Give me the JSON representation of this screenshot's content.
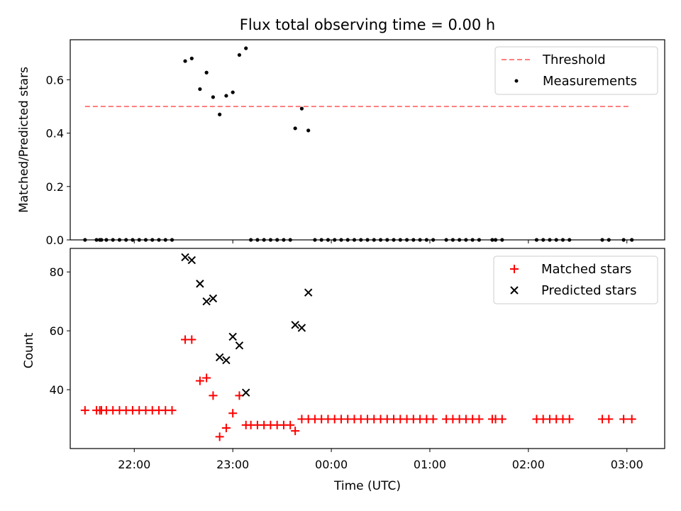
{
  "chart_data": [
    {
      "type": "scatter",
      "title": "Flux total observing time = 0.00 h",
      "xlabel": "",
      "ylabel": "Matched/Predicted stars",
      "xlim": [
        "21:21",
        "03:23"
      ],
      "ylim": [
        0,
        0.75
      ],
      "yticks": [
        "0.0",
        "0.2",
        "0.4",
        "0.6"
      ],
      "ytick_values": [
        0.0,
        0.2,
        0.4,
        0.6
      ],
      "legend_position": "top-right",
      "threshold": {
        "name": "Threshold",
        "value": 0.5,
        "x_start": "21:30",
        "x_end": "03:01",
        "color": "#ff7f7f",
        "style": "dashed"
      },
      "series": [
        {
          "name": "Measurements",
          "color": "#000000",
          "marker": "dot",
          "points": [
            [
              "21:30",
              0.0
            ],
            [
              "21:37",
              0.0
            ],
            [
              "21:39",
              0.0
            ],
            [
              "21:40",
              0.0
            ],
            [
              "21:43",
              0.0
            ],
            [
              "21:47",
              0.0
            ],
            [
              "21:51",
              0.0
            ],
            [
              "21:55",
              0.0
            ],
            [
              "21:59",
              0.0
            ],
            [
              "22:03",
              0.0
            ],
            [
              "22:07",
              0.0
            ],
            [
              "22:11",
              0.0
            ],
            [
              "22:15",
              0.0
            ],
            [
              "22:19",
              0.0
            ],
            [
              "22:23",
              0.0
            ],
            [
              "22:31",
              0.67
            ],
            [
              "22:35",
              0.68
            ],
            [
              "22:40",
              0.565
            ],
            [
              "22:44",
              0.627
            ],
            [
              "22:48",
              0.535
            ],
            [
              "22:52",
              0.47
            ],
            [
              "22:56",
              0.54
            ],
            [
              "23:00",
              0.553
            ],
            [
              "23:04",
              0.693
            ],
            [
              "23:08",
              0.718
            ],
            [
              "23:11",
              0.0
            ],
            [
              "23:15",
              0.0
            ],
            [
              "23:19",
              0.0
            ],
            [
              "23:23",
              0.0
            ],
            [
              "23:27",
              0.0
            ],
            [
              "23:31",
              0.0
            ],
            [
              "23:35",
              0.0
            ],
            [
              "23:38",
              0.418
            ],
            [
              "23:42",
              0.492
            ],
            [
              "23:46",
              0.41
            ],
            [
              "23:50",
              0.0
            ],
            [
              "23:54",
              0.0
            ],
            [
              "23:58",
              0.0
            ],
            [
              "00:02",
              0.0
            ],
            [
              "00:06",
              0.0
            ],
            [
              "00:10",
              0.0
            ],
            [
              "00:14",
              0.0
            ],
            [
              "00:18",
              0.0
            ],
            [
              "00:22",
              0.0
            ],
            [
              "00:26",
              0.0
            ],
            [
              "00:30",
              0.0
            ],
            [
              "00:34",
              0.0
            ],
            [
              "00:38",
              0.0
            ],
            [
              "00:42",
              0.0
            ],
            [
              "00:46",
              0.0
            ],
            [
              "00:50",
              0.0
            ],
            [
              "00:54",
              0.0
            ],
            [
              "00:58",
              0.0
            ],
            [
              "01:02",
              0.0
            ],
            [
              "01:10",
              0.0
            ],
            [
              "01:14",
              0.0
            ],
            [
              "01:18",
              0.0
            ],
            [
              "01:22",
              0.0
            ],
            [
              "01:26",
              0.0
            ],
            [
              "01:30",
              0.0
            ],
            [
              "01:38",
              0.0
            ],
            [
              "01:40",
              0.0
            ],
            [
              "01:44",
              0.0
            ],
            [
              "02:05",
              0.0
            ],
            [
              "02:09",
              0.0
            ],
            [
              "02:13",
              0.0
            ],
            [
              "02:17",
              0.0
            ],
            [
              "02:21",
              0.0
            ],
            [
              "02:25",
              0.0
            ],
            [
              "02:45",
              0.0
            ],
            [
              "02:49",
              0.0
            ],
            [
              "02:58",
              0.0
            ],
            [
              "03:03",
              0.0
            ]
          ]
        }
      ]
    },
    {
      "type": "scatter",
      "title": "",
      "xlabel": "Time (UTC)",
      "ylabel": "Count",
      "xlim": [
        "21:21",
        "03:23"
      ],
      "ylim": [
        20,
        88
      ],
      "yticks": [
        "40",
        "60",
        "80"
      ],
      "ytick_values": [
        40,
        60,
        80
      ],
      "xticks": [
        "22:00",
        "23:00",
        "00:00",
        "01:00",
        "02:00",
        "03:00"
      ],
      "legend_position": "top-right",
      "series": [
        {
          "name": "Matched stars",
          "color": "#ff0000",
          "marker": "plus",
          "points": [
            [
              "21:30",
              33
            ],
            [
              "21:37",
              33
            ],
            [
              "21:39",
              33
            ],
            [
              "21:40",
              33
            ],
            [
              "21:43",
              33
            ],
            [
              "21:47",
              33
            ],
            [
              "21:51",
              33
            ],
            [
              "21:55",
              33
            ],
            [
              "21:59",
              33
            ],
            [
              "22:03",
              33
            ],
            [
              "22:07",
              33
            ],
            [
              "22:11",
              33
            ],
            [
              "22:15",
              33
            ],
            [
              "22:19",
              33
            ],
            [
              "22:23",
              33
            ],
            [
              "22:31",
              57
            ],
            [
              "22:35",
              57
            ],
            [
              "22:40",
              43
            ],
            [
              "22:44",
              44
            ],
            [
              "22:48",
              38
            ],
            [
              "22:52",
              24
            ],
            [
              "22:56",
              27
            ],
            [
              "23:00",
              32
            ],
            [
              "23:04",
              38
            ],
            [
              "23:08",
              28
            ],
            [
              "23:11",
              28
            ],
            [
              "23:15",
              28
            ],
            [
              "23:19",
              28
            ],
            [
              "23:23",
              28
            ],
            [
              "23:27",
              28
            ],
            [
              "23:31",
              28
            ],
            [
              "23:35",
              28
            ],
            [
              "23:38",
              26
            ],
            [
              "23:42",
              30
            ],
            [
              "23:46",
              30
            ],
            [
              "23:50",
              30
            ],
            [
              "23:54",
              30
            ],
            [
              "23:58",
              30
            ],
            [
              "00:02",
              30
            ],
            [
              "00:06",
              30
            ],
            [
              "00:10",
              30
            ],
            [
              "00:14",
              30
            ],
            [
              "00:18",
              30
            ],
            [
              "00:22",
              30
            ],
            [
              "00:26",
              30
            ],
            [
              "00:30",
              30
            ],
            [
              "00:34",
              30
            ],
            [
              "00:38",
              30
            ],
            [
              "00:42",
              30
            ],
            [
              "00:46",
              30
            ],
            [
              "00:50",
              30
            ],
            [
              "00:54",
              30
            ],
            [
              "00:58",
              30
            ],
            [
              "01:02",
              30
            ],
            [
              "01:10",
              30
            ],
            [
              "01:14",
              30
            ],
            [
              "01:18",
              30
            ],
            [
              "01:22",
              30
            ],
            [
              "01:26",
              30
            ],
            [
              "01:30",
              30
            ],
            [
              "01:38",
              30
            ],
            [
              "01:40",
              30
            ],
            [
              "01:44",
              30
            ],
            [
              "02:05",
              30
            ],
            [
              "02:09",
              30
            ],
            [
              "02:13",
              30
            ],
            [
              "02:17",
              30
            ],
            [
              "02:21",
              30
            ],
            [
              "02:25",
              30
            ],
            [
              "02:45",
              30
            ],
            [
              "02:49",
              30
            ],
            [
              "02:58",
              30
            ],
            [
              "03:03",
              30
            ]
          ]
        },
        {
          "name": "Predicted stars",
          "color": "#000000",
          "marker": "x",
          "points": [
            [
              "22:31",
              85
            ],
            [
              "22:35",
              84
            ],
            [
              "22:40",
              76
            ],
            [
              "22:44",
              70
            ],
            [
              "22:48",
              71
            ],
            [
              "22:52",
              51
            ],
            [
              "22:56",
              50
            ],
            [
              "23:00",
              58
            ],
            [
              "23:04",
              55
            ],
            [
              "23:08",
              39
            ],
            [
              "23:38",
              62
            ],
            [
              "23:42",
              61
            ],
            [
              "23:46",
              73
            ]
          ]
        }
      ]
    }
  ]
}
